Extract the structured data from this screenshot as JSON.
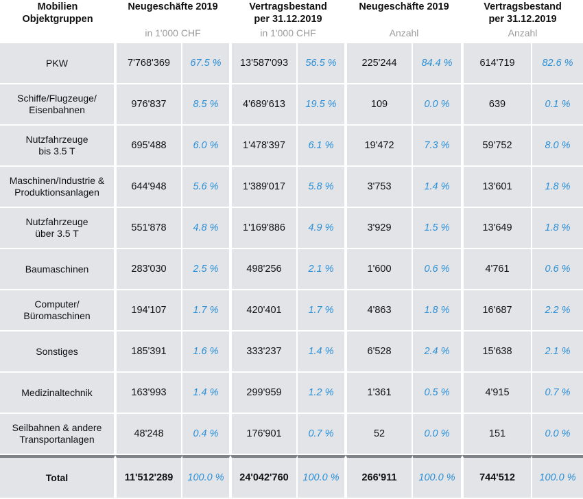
{
  "header": {
    "col0": "Mobilien\nObjektgruppen",
    "groups": [
      {
        "title": "Neugeschäfte 2019",
        "unit": "in 1'000 CHF"
      },
      {
        "title": "Vertragsbestand\nper 31.12.2019",
        "unit": "in 1'000 CHF"
      },
      {
        "title": "Neugeschäfte 2019",
        "unit": "Anzahl"
      },
      {
        "title": "Vertragsbestand\nper 31.12.2019",
        "unit": "Anzahl"
      }
    ]
  },
  "rows": [
    {
      "label": "PKW",
      "v": [
        "7'768'369",
        "67.5 %",
        "13'587'093",
        "56.5 %",
        "225'244",
        "84.4 %",
        "614'719",
        "82.6 %"
      ]
    },
    {
      "label": "Schiffe/Flugzeuge/\nEisenbahnen",
      "v": [
        "976'837",
        "8.5 %",
        "4'689'613",
        "19.5 %",
        "109",
        "0.0 %",
        "639",
        "0.1 %"
      ]
    },
    {
      "label": "Nutzfahrzeuge\nbis 3.5 T",
      "v": [
        "695'488",
        "6.0 %",
        "1'478'397",
        "6.1 %",
        "19'472",
        "7.3 %",
        "59'752",
        "8.0 %"
      ]
    },
    {
      "label": "Maschinen/Industrie &\nProduktionsanlagen",
      "v": [
        "644'948",
        "5.6 %",
        "1'389'017",
        "5.8 %",
        "3'753",
        "1.4 %",
        "13'601",
        "1.8 %"
      ]
    },
    {
      "label": "Nutzfahrzeuge\nüber 3.5 T",
      "v": [
        "551'878",
        "4.8 %",
        "1'169'886",
        "4.9 %",
        "3'929",
        "1.5 %",
        "13'649",
        "1.8 %"
      ]
    },
    {
      "label": "Baumaschinen",
      "v": [
        "283'030",
        "2.5 %",
        "498'256",
        "2.1 %",
        "1'600",
        "0.6 %",
        "4'761",
        "0.6 %"
      ]
    },
    {
      "label": "Computer/\nBüromaschinen",
      "v": [
        "194'107",
        "1.7 %",
        "420'401",
        "1.7 %",
        "4'863",
        "1.8 %",
        "16'687",
        "2.2 %"
      ]
    },
    {
      "label": "Sonstiges",
      "v": [
        "185'391",
        "1.6 %",
        "333'237",
        "1.4 %",
        "6'528",
        "2.4 %",
        "15'638",
        "2.1 %"
      ]
    },
    {
      "label": "Medizinaltechnik",
      "v": [
        "163'993",
        "1.4 %",
        "299'959",
        "1.2 %",
        "1'361",
        "0.5 %",
        "4'915",
        "0.7 %"
      ]
    },
    {
      "label": "Seilbahnen & andere\nTransportanlagen",
      "v": [
        "48'248",
        "0.4 %",
        "176'901",
        "0.7 %",
        "52",
        "0.0 %",
        "151",
        "0.0 %"
      ]
    }
  ],
  "total": {
    "label": "Total",
    "v": [
      "11'512'289",
      "100.0 %",
      "24'042'760",
      "100.0 %",
      "266'911",
      "100.0 %",
      "744'512",
      "100.0 %"
    ]
  }
}
